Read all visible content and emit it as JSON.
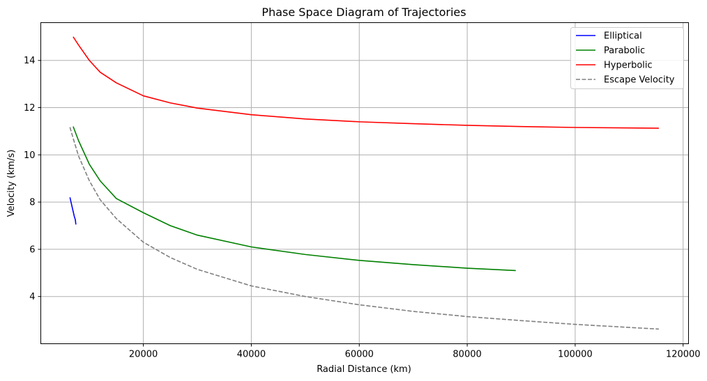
{
  "chart_data": {
    "type": "line",
    "title": "Phase Space Diagram of Trajectories",
    "xlabel": "Radial Distance (km)",
    "ylabel": "Velocity (km/s)",
    "xlim": [
      1000,
      121000
    ],
    "ylim": [
      2.0,
      15.6
    ],
    "xticks": [
      20000,
      40000,
      60000,
      80000,
      100000,
      120000
    ],
    "xtick_labels": [
      "20000",
      "40000",
      "60000",
      "80000",
      "100000",
      "120000"
    ],
    "yticks": [
      4,
      6,
      8,
      10,
      12,
      14
    ],
    "ytick_labels": [
      "4",
      "6",
      "8",
      "10",
      "12",
      "14"
    ],
    "grid": true,
    "legend_position": "top-right",
    "series": [
      {
        "name": "Elliptical",
        "color": "#0000ff",
        "style": "solid",
        "points": [
          [
            6400,
            8.2
          ],
          [
            6600,
            8.0
          ],
          [
            6800,
            7.8
          ],
          [
            7000,
            7.6
          ],
          [
            7200,
            7.4
          ],
          [
            7400,
            7.25
          ],
          [
            7500,
            7.05
          ]
        ]
      },
      {
        "name": "Parabolic",
        "color": "#008000",
        "style": "solid",
        "points": [
          [
            7000,
            11.2
          ],
          [
            8000,
            10.6
          ],
          [
            10000,
            9.6
          ],
          [
            12000,
            8.9
          ],
          [
            15000,
            8.15
          ],
          [
            20000,
            7.55
          ],
          [
            25000,
            7.0
          ],
          [
            30000,
            6.6
          ],
          [
            40000,
            6.1
          ],
          [
            50000,
            5.78
          ],
          [
            60000,
            5.53
          ],
          [
            70000,
            5.35
          ],
          [
            80000,
            5.2
          ],
          [
            89000,
            5.1
          ]
        ]
      },
      {
        "name": "Hyperbolic",
        "color": "#ff0000",
        "style": "solid",
        "points": [
          [
            7000,
            15.0
          ],
          [
            8000,
            14.65
          ],
          [
            10000,
            14.0
          ],
          [
            12000,
            13.5
          ],
          [
            15000,
            13.05
          ],
          [
            20000,
            12.5
          ],
          [
            25000,
            12.2
          ],
          [
            30000,
            11.98
          ],
          [
            40000,
            11.7
          ],
          [
            50000,
            11.52
          ],
          [
            60000,
            11.4
          ],
          [
            70000,
            11.32
          ],
          [
            80000,
            11.25
          ],
          [
            90000,
            11.2
          ],
          [
            100000,
            11.16
          ],
          [
            115500,
            11.13
          ]
        ]
      },
      {
        "name": "Escape Velocity",
        "color": "#808080",
        "style": "dashed",
        "points": [
          [
            6400,
            11.17
          ],
          [
            7000,
            10.7
          ],
          [
            8000,
            9.95
          ],
          [
            10000,
            8.9
          ],
          [
            12000,
            8.1
          ],
          [
            15000,
            7.3
          ],
          [
            20000,
            6.3
          ],
          [
            25000,
            5.65
          ],
          [
            30000,
            5.15
          ],
          [
            40000,
            4.45
          ],
          [
            50000,
            4.0
          ],
          [
            60000,
            3.65
          ],
          [
            70000,
            3.37
          ],
          [
            80000,
            3.15
          ],
          [
            90000,
            2.98
          ],
          [
            100000,
            2.82
          ],
          [
            115500,
            2.62
          ]
        ]
      }
    ]
  }
}
